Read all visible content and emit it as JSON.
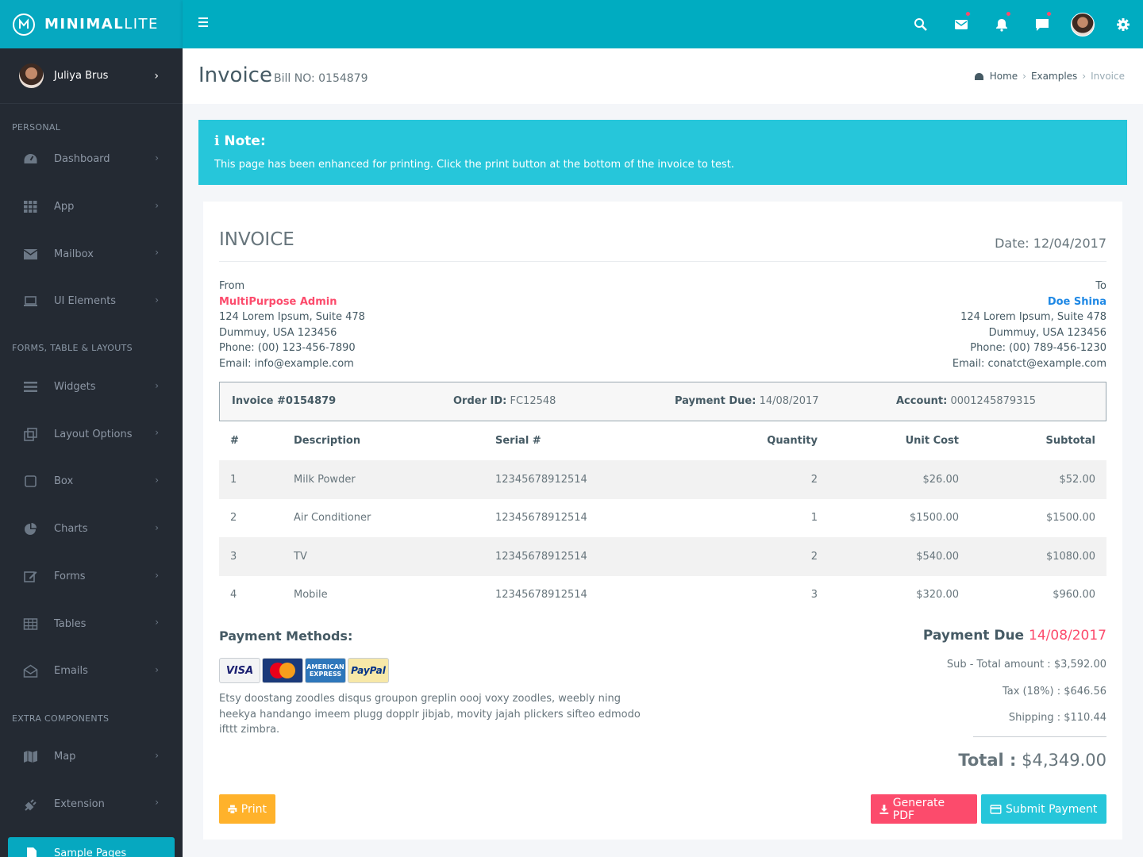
{
  "brand": {
    "name_bold": "MINIMAL",
    "name_light": "LITE"
  },
  "header": {
    "icons": [
      "search-icon",
      "mail-icon",
      "bell-icon",
      "chat-icon",
      "avatar",
      "gear-icon"
    ]
  },
  "sidebar": {
    "user_name": "Juliya Brus",
    "sections": [
      {
        "header": "PERSONAL",
        "items": [
          {
            "label": "Dashboard",
            "icon": "dashboard-icon"
          },
          {
            "label": "App",
            "icon": "apps-grid-icon"
          },
          {
            "label": "Mailbox",
            "icon": "envelope-icon"
          },
          {
            "label": "UI Elements",
            "icon": "laptop-icon"
          }
        ]
      },
      {
        "header": "FORMS, TABLE & LAYOUTS",
        "items": [
          {
            "label": "Widgets",
            "icon": "bars-icon"
          },
          {
            "label": "Layout Options",
            "icon": "copy-icon"
          },
          {
            "label": "Box",
            "icon": "square-icon"
          },
          {
            "label": "Charts",
            "icon": "pie-chart-icon"
          },
          {
            "label": "Forms",
            "icon": "edit-icon"
          },
          {
            "label": "Tables",
            "icon": "table-icon"
          },
          {
            "label": "Emails",
            "icon": "envelope-open-icon"
          }
        ]
      },
      {
        "header": "EXTRA COMPONENTS",
        "items": [
          {
            "label": "Map",
            "icon": "map-icon"
          },
          {
            "label": "Extension",
            "icon": "plug-icon"
          }
        ]
      }
    ],
    "active_item": "Sample Pages"
  },
  "page": {
    "title": "Invoice",
    "subtitle": "Bill NO: 0154879",
    "breadcrumb": [
      "Home",
      "Examples",
      "Invoice"
    ]
  },
  "note": {
    "title": "Note:",
    "text": "This page has been enhanced for printing. Click the print button at the bottom of the invoice to test."
  },
  "invoice": {
    "heading": "INVOICE",
    "date": "Date: 12/04/2017",
    "from": {
      "label": "From",
      "name": "MultiPurpose Admin",
      "lines": [
        "124 Lorem Ipsum, Suite 478",
        "Dummuy, USA 123456",
        "Phone: (00) 123-456-7890",
        "Email: info@example.com"
      ]
    },
    "to": {
      "label": "To",
      "name": "Doe Shina",
      "lines": [
        "124 Lorem Ipsum, Suite 478",
        "Dummuy, USA 123456",
        "Phone: (00) 789-456-1230",
        "Email: conatct@example.com"
      ]
    },
    "meta": {
      "invoice_no": "Invoice #0154879",
      "order_label": "Order ID:",
      "order_value": "FC12548",
      "due_label": "Payment Due:",
      "due_value": "14/08/2017",
      "account_label": "Account:",
      "account_value": "0001245879315"
    },
    "table": {
      "headers": [
        "#",
        "Description",
        "Serial #",
        "Quantity",
        "Unit Cost",
        "Subtotal"
      ],
      "rows": [
        [
          "1",
          "Milk Powder",
          "12345678912514",
          "2",
          "$26.00",
          "$52.00"
        ],
        [
          "2",
          "Air Conditioner",
          "12345678912514",
          "1",
          "$1500.00",
          "$1500.00"
        ],
        [
          "3",
          "TV",
          "12345678912514",
          "2",
          "$540.00",
          "$1080.00"
        ],
        [
          "4",
          "Mobile",
          "12345678912514",
          "3",
          "$320.00",
          "$960.00"
        ]
      ]
    },
    "payment_methods": {
      "title": "Payment Methods:",
      "cards": [
        "VISA",
        "MasterCard",
        "AMERICAN EXPRESS",
        "PayPal"
      ],
      "text": "Etsy doostang zoodles disqus groupon greplin oooj voxy zoodles, weebly ning heekya handango imeem plugg dopplr jibjab, movity jajah plickers sifteo edmodo ifttt zimbra."
    },
    "summary": {
      "due_label": "Payment Due",
      "due_date": "14/08/2017",
      "subtotal": "Sub - Total amount : $3,592.00",
      "tax": "Tax (18%) : $646.56",
      "shipping": "Shipping : $110.44",
      "total_label": "Total :",
      "total_value": "$4,349.00"
    },
    "buttons": {
      "print": "Print",
      "pdf": "Generate PDF",
      "pay": "Submit Payment"
    }
  },
  "colors": {
    "primary": "#00acc1",
    "sidebar": "#242a33",
    "danger": "#fc4b6c",
    "info": "#26c6da",
    "warning": "#ffb22b",
    "link": "#1e88e5"
  }
}
